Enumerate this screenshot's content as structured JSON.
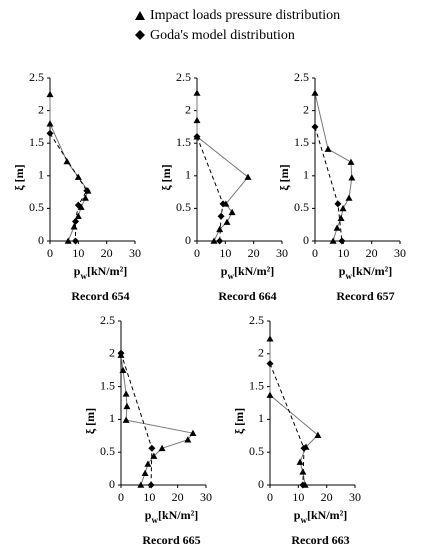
{
  "chart_data": [
    {
      "type": "scatter",
      "title": "Record 654",
      "xlabel": [
        "p",
        "w",
        "[kN/m²]"
      ],
      "ylabel": "ξ [m]",
      "xlim": [
        0,
        30
      ],
      "ylim": [
        0,
        2.5
      ],
      "xticks": [
        0,
        10,
        20,
        30
      ],
      "yticks": [
        0,
        0.5,
        1,
        1.5,
        2,
        2.5
      ],
      "series": [
        {
          "name": "Impact loads pressure distribution",
          "color": "#000000",
          "marker": "triangle",
          "line": "solid",
          "x": [
            0,
            0,
            6,
            10,
            13.4,
            12.5,
            11,
            10,
            8.5,
            6.4
          ],
          "values": [
            2.25,
            1.8,
            1.22,
            0.98,
            0.77,
            0.66,
            0.52,
            0.38,
            0.22,
            0
          ]
        },
        {
          "name": "Goda's model distribution",
          "color": "#000000",
          "marker": "diamond",
          "line": "dashed",
          "x": [
            0,
            13,
            10,
            9,
            9
          ],
          "values": [
            1.65,
            0.77,
            0.55,
            0.3,
            0
          ]
        }
      ]
    },
    {
      "type": "scatter",
      "title": "Record 664",
      "xlabel": [
        "p",
        "w",
        "[kN/m²]"
      ],
      "ylabel": "ξ [m]",
      "xlim": [
        0,
        30
      ],
      "ylim": [
        0,
        2.5
      ],
      "xticks": [
        0,
        10,
        20,
        30
      ],
      "yticks": [
        0,
        0.5,
        1,
        1.5,
        2,
        2.5
      ],
      "series": [
        {
          "color": "#000000",
          "marker": "triangle",
          "line": "solid",
          "x": [
            0,
            0,
            0,
            18,
            10.2,
            12.4,
            10.6,
            8,
            6
          ],
          "values": [
            2.27,
            1.85,
            1.6,
            0.98,
            0.57,
            0.44,
            0.29,
            0.18,
            0
          ]
        },
        {
          "color": "#000000",
          "marker": "diamond",
          "line": "dashed",
          "x": [
            0,
            9.2,
            8.5,
            8
          ],
          "values": [
            1.6,
            0.57,
            0.38,
            0
          ]
        }
      ]
    },
    {
      "type": "scatter",
      "title": "Record 657",
      "xlabel": [
        "p",
        "w",
        "[kN/m²]"
      ],
      "ylabel": "ξ [m]",
      "xlim": [
        0,
        30
      ],
      "ylim": [
        0,
        2.5
      ],
      "xticks": [
        0,
        10,
        20,
        30
      ],
      "yticks": [
        0,
        0.5,
        1,
        1.5,
        2,
        2.5
      ],
      "series": [
        {
          "color": "#000000",
          "marker": "triangle",
          "line": "solid",
          "x": [
            0,
            4.6,
            12.7,
            13,
            12,
            9.9,
            9.2,
            7.8,
            6.4
          ],
          "values": [
            2.27,
            1.41,
            1.21,
            0.97,
            0.66,
            0.5,
            0.35,
            0.2,
            0
          ]
        },
        {
          "color": "#000000",
          "marker": "diamond",
          "line": "dashed",
          "x": [
            0,
            8.1,
            9.5
          ],
          "values": [
            1.75,
            0.57,
            0
          ]
        }
      ]
    },
    {
      "type": "scatter",
      "title": "Record 665",
      "xlabel": [
        "p",
        "w",
        "[kN/m²]"
      ],
      "ylabel": "ξ [m]",
      "xlim": [
        0,
        30
      ],
      "ylim": [
        0,
        2.5
      ],
      "xticks": [
        0,
        10,
        20,
        30
      ],
      "yticks": [
        0,
        0.5,
        1,
        1.5,
        2,
        2.5
      ],
      "series": [
        {
          "color": "#000000",
          "marker": "triangle",
          "line": "solid",
          "x": [
            0,
            0.7,
            1.8,
            2.1,
            1.8,
            25.4,
            23.6,
            14.5,
            11.6,
            9.5,
            8.5,
            7
          ],
          "values": [
            1.98,
            1.75,
            1.39,
            1.2,
            0.99,
            0.79,
            0.69,
            0.56,
            0.44,
            0.32,
            0.18,
            0
          ]
        },
        {
          "color": "#000000",
          "marker": "diamond",
          "line": "dashed",
          "x": [
            0,
            10.9,
            10.6
          ],
          "values": [
            2.01,
            0.56,
            0
          ]
        }
      ]
    },
    {
      "type": "scatter",
      "title": "Record 663",
      "xlabel": [
        "p",
        "w",
        "[kN/m²]"
      ],
      "ylabel": "ξ [m]",
      "xlim": [
        0,
        30
      ],
      "ylim": [
        0,
        2.5
      ],
      "xticks": [
        0,
        10,
        20,
        30
      ],
      "yticks": [
        0,
        0.5,
        1,
        1.5,
        2,
        2.5
      ],
      "series": [
        {
          "color": "#000000",
          "marker": "triangle",
          "line": "solid",
          "x": [
            0,
            0,
            16.9,
            12.7,
            10.6,
            11.6,
            12.4
          ],
          "values": [
            2.23,
            1.37,
            0.76,
            0.58,
            0.35,
            0.2,
            0
          ]
        },
        {
          "color": "#000000",
          "marker": "diamond",
          "line": "dashed",
          "x": [
            0,
            12,
            11.6
          ],
          "values": [
            1.85,
            0.56,
            0
          ]
        }
      ]
    }
  ]
}
